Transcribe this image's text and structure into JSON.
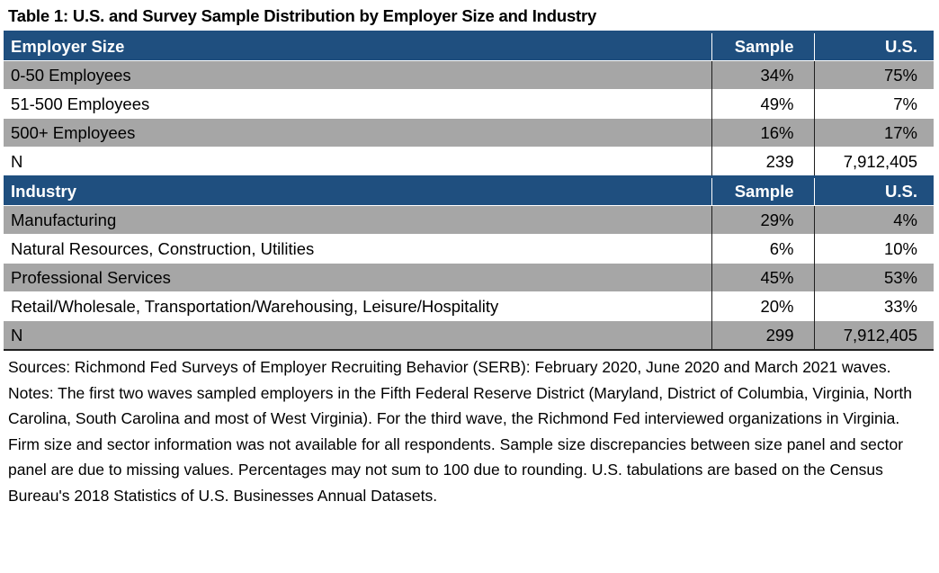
{
  "title": "Table 1: U.S. and Survey Sample Distribution by Employer Size and Industry",
  "sections": [
    {
      "header": {
        "label": "Employer Size",
        "sample": "Sample",
        "us": "U.S."
      },
      "rows": [
        {
          "label": "0-50 Employees",
          "sample": "34%",
          "us": "75%"
        },
        {
          "label": "51-500 Employees",
          "sample": "49%",
          "us": "7%"
        },
        {
          "label": "500+ Employees",
          "sample": "16%",
          "us": "17%"
        },
        {
          "label": "N",
          "sample": "239",
          "us": "7,912,405"
        }
      ]
    },
    {
      "header": {
        "label": "Industry",
        "sample": "Sample",
        "us": "U.S."
      },
      "rows": [
        {
          "label": "Manufacturing",
          "sample": "29%",
          "us": "4%"
        },
        {
          "label": "Natural Resources, Construction, Utilities",
          "sample": "6%",
          "us": "10%"
        },
        {
          "label": "Professional Services",
          "sample": "45%",
          "us": "53%"
        },
        {
          "label": "Retail/Wholesale, Transportation/Warehousing, Leisure/Hospitality",
          "sample": "20%",
          "us": "33%"
        },
        {
          "label": "N",
          "sample": "299",
          "us": "7,912,405"
        }
      ]
    }
  ],
  "sources": "Sources: Richmond Fed Surveys of Employer Recruiting Behavior (SERB): February 2020, June 2020 and March 2021 waves.",
  "notes": "Notes: The first two waves sampled employers in the Fifth Federal Reserve District (Maryland, District of Columbia, Virginia, North Carolina, South Carolina and most of West Virginia). For the third wave, the Richmond Fed interviewed organizations in Virginia. Firm size and sector information was not available for all respondents. Sample size discrepancies between size panel and sector panel are due to missing values. Percentages may not sum to 100 due to rounding. U.S. tabulations are based on the Census Bureau's 2018 Statistics of U.S. Businesses Annual Datasets.",
  "colors": {
    "header_bg": "#1f4f7f",
    "shade_bg": "#a6a6a6",
    "header_text": "#ffffff"
  }
}
